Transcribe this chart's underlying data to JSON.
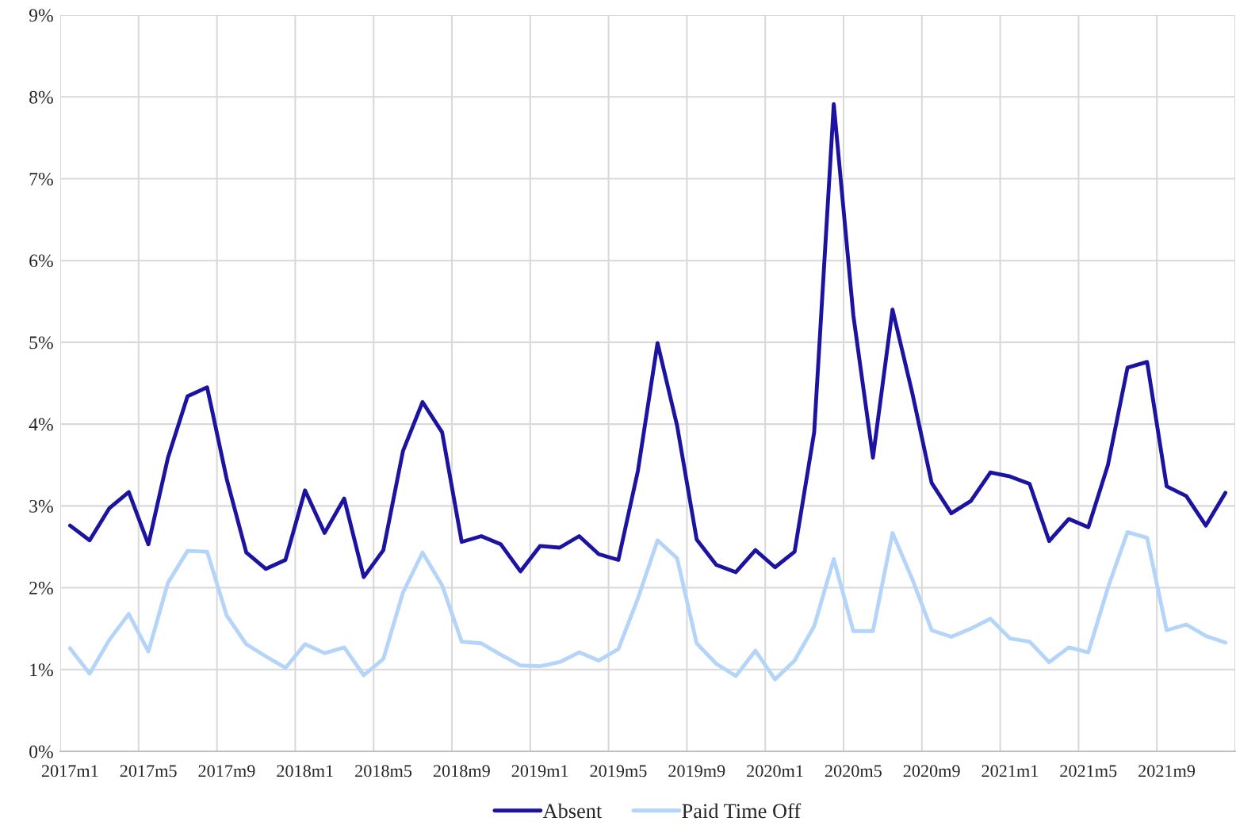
{
  "chart_data": {
    "type": "line",
    "categories": [
      "2017m1",
      null,
      null,
      null,
      "2017m5",
      null,
      null,
      null,
      "2017m9",
      null,
      null,
      null,
      "2018m1",
      null,
      null,
      null,
      "2018m5",
      null,
      null,
      null,
      "2018m9",
      null,
      null,
      null,
      "2019m1",
      null,
      null,
      null,
      "2019m5",
      null,
      null,
      null,
      "2019m9",
      null,
      null,
      null,
      "2020m1",
      null,
      null,
      null,
      "2020m5",
      null,
      null,
      null,
      "2020m9",
      null,
      null,
      null,
      "2021m1",
      null,
      null,
      null,
      "2021m5",
      null,
      null,
      null,
      "2021m9",
      null,
      null,
      null
    ],
    "series": [
      {
        "name": "Absent",
        "color": "#1c14a0",
        "values": [
          2.76,
          2.58,
          2.97,
          3.17,
          2.53,
          3.59,
          4.34,
          4.45,
          3.33,
          2.43,
          2.23,
          2.34,
          3.19,
          2.67,
          3.09,
          2.13,
          2.46,
          3.67,
          4.27,
          3.9,
          2.56,
          2.63,
          2.53,
          2.2,
          2.51,
          2.49,
          2.63,
          2.41,
          2.34,
          3.43,
          4.99,
          3.98,
          2.59,
          2.28,
          2.19,
          2.46,
          2.25,
          2.44,
          3.9,
          7.91,
          5.33,
          3.59,
          5.4,
          4.39,
          3.28,
          2.91,
          3.06,
          3.41,
          3.36,
          3.27,
          2.57,
          2.84,
          2.74,
          3.5,
          4.69,
          4.76,
          3.24,
          3.12,
          2.76,
          3.16
        ]
      },
      {
        "name": "Paid Time Off",
        "color": "#b4d4fa",
        "values": [
          1.26,
          0.95,
          1.36,
          1.68,
          1.22,
          2.06,
          2.45,
          2.44,
          1.66,
          1.31,
          1.16,
          1.02,
          1.31,
          1.2,
          1.27,
          0.93,
          1.13,
          1.94,
          2.43,
          2.03,
          1.34,
          1.32,
          1.18,
          1.05,
          1.04,
          1.09,
          1.21,
          1.11,
          1.25,
          1.87,
          2.58,
          2.36,
          1.32,
          1.07,
          0.92,
          1.23,
          0.88,
          1.11,
          1.53,
          2.35,
          1.47,
          1.47,
          2.67,
          2.11,
          1.48,
          1.4,
          1.5,
          1.62,
          1.38,
          1.34,
          1.09,
          1.27,
          1.21,
          2.0,
          2.68,
          2.61,
          1.48,
          1.55,
          1.41,
          1.33
        ]
      }
    ],
    "ylim": [
      0,
      9
    ],
    "yticks": [
      {
        "value": 0,
        "label": "0%"
      },
      {
        "value": 1,
        "label": "1%"
      },
      {
        "value": 2,
        "label": "2%"
      },
      {
        "value": 3,
        "label": "3%"
      },
      {
        "value": 4,
        "label": "4%"
      },
      {
        "value": 5,
        "label": "5%"
      },
      {
        "value": 6,
        "label": "6%"
      },
      {
        "value": 7,
        "label": "7%"
      },
      {
        "value": 8,
        "label": "8%"
      },
      {
        "value": 9,
        "label": "9%"
      }
    ],
    "grid": true,
    "legend": "bottom",
    "marker": "none",
    "line_style": "solid"
  }
}
